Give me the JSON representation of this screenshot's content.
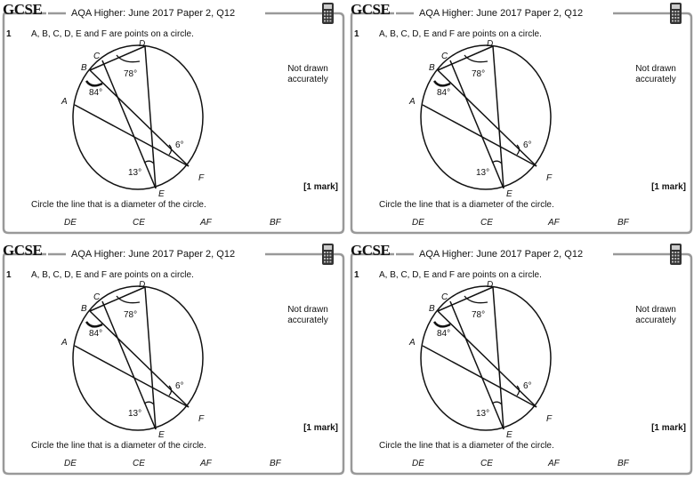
{
  "cards": [
    {
      "logo": "GCSE",
      "header": "AQA Higher: June 2017 Paper 2, Q12",
      "number": "1",
      "question": "A, B, C, D, E and F are points on a circle.",
      "points": [
        "A",
        "B",
        "C",
        "D",
        "E",
        "F"
      ],
      "angles": [
        "78°",
        "84°",
        "6°",
        "13°"
      ],
      "note": "Not drawn accurately",
      "marks": "[1 mark]",
      "instruction": "Circle the line that is a diameter of the circle.",
      "options": [
        "DE",
        "CE",
        "AF",
        "BF"
      ]
    },
    {
      "logo": "GCSE",
      "header": "AQA Higher: June 2017 Paper 2, Q12",
      "number": "1",
      "question": "A, B, C, D, E and F are points on a circle.",
      "points": [
        "A",
        "B",
        "C",
        "D",
        "E",
        "F"
      ],
      "angles": [
        "78°",
        "84°",
        "6°",
        "13°"
      ],
      "note": "Not drawn accurately",
      "marks": "[1 mark]",
      "instruction": "Circle the line that is a diameter of the circle.",
      "options": [
        "DE",
        "CE",
        "AF",
        "BF"
      ]
    },
    {
      "logo": "GCSE",
      "header": "AQA Higher: June 2017 Paper 2, Q12",
      "number": "1",
      "question": "A, B, C, D, E and F are points on a circle.",
      "points": [
        "A",
        "B",
        "C",
        "D",
        "E",
        "F"
      ],
      "angles": [
        "78°",
        "84°",
        "6°",
        "13°"
      ],
      "note": "Not drawn accurately",
      "marks": "[1 mark]",
      "instruction": "Circle the line that is a diameter of the circle.",
      "options": [
        "DE",
        "CE",
        "AF",
        "BF"
      ]
    },
    {
      "logo": "GCSE",
      "header": "AQA Higher: June 2017 Paper 2, Q12",
      "number": "1",
      "question": "A, B, C, D, E and F are points on a circle.",
      "points": [
        "A",
        "B",
        "C",
        "D",
        "E",
        "F"
      ],
      "angles": [
        "78°",
        "84°",
        "6°",
        "13°"
      ],
      "note": "Not drawn accurately",
      "marks": "[1 mark]",
      "instruction": "Circle the line that is a diameter of the circle.",
      "options": [
        "DE",
        "CE",
        "AF",
        "BF"
      ]
    }
  ]
}
